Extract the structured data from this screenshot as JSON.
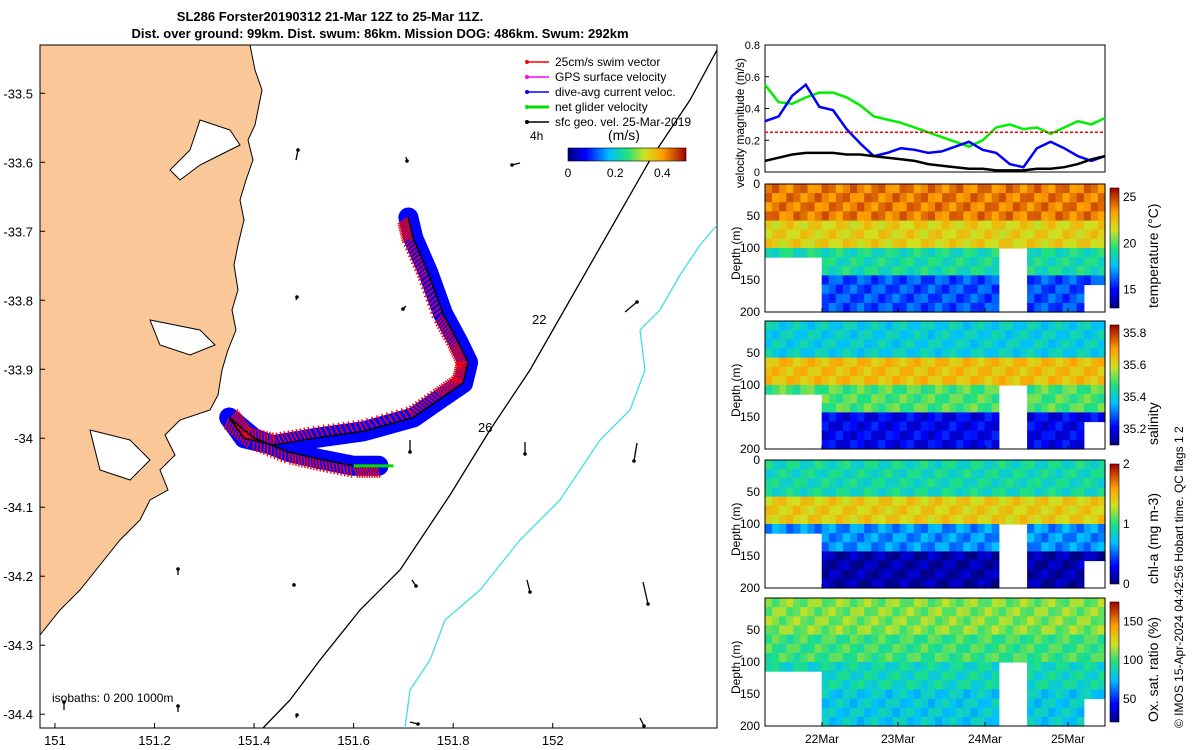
{
  "title_line1": "SL286 Forster20190312 21-Mar 12Z to 25-Mar 11Z.",
  "title_line2": "Dist. over ground: 99km. Dist. swum: 86km. Mission DOG: 486km. Swum: 292km",
  "credit": "© IMOS 15-Apr-2024 04:42:56 Hobart time. QC flags 1  2",
  "map": {
    "legend": [
      {
        "label": "25cm/s swim vector",
        "color": "#ff0000"
      },
      {
        "label": "GPS surface velocity",
        "color": "#ff00ff"
      },
      {
        "label": "dive-avg current veloc.",
        "color": "#0000ff"
      },
      {
        "label": "net glider velocity",
        "color": "#00dd00"
      },
      {
        "label": "sfc geo. vel. 25-Mar-2019",
        "color": "#000000"
      }
    ],
    "colorbar_unit": "(m/s)",
    "colorbar_ticks": [
      "0",
      "0.2",
      "0.4"
    ],
    "hour_label": "4h",
    "isobath_label": "isobaths: 0   200  1000m",
    "track_labels": [
      "22",
      "26"
    ],
    "land_color": "#fac898",
    "isobath_200_color": "#40e0e0"
  },
  "chart_data": [
    {
      "type": "line",
      "id": "map-axes",
      "xlim": [
        150.97,
        152.33
      ],
      "ylim": [
        -34.42,
        -33.43
      ],
      "xticks": [
        "151",
        "151.2",
        "151.4",
        "151.6",
        "151.8",
        "152"
      ],
      "yticks": [
        "-33.5",
        "-33.6",
        "-33.7",
        "-33.8",
        "-33.9",
        "-34",
        "-34.1",
        "-34.2",
        "-34.3",
        "-34.4"
      ],
      "glider_track": {
        "x": [
          151.71,
          151.72,
          151.75,
          151.78,
          151.81,
          151.83,
          151.82,
          151.78,
          151.72,
          151.62,
          151.52,
          151.44,
          151.38,
          151.35,
          151.4,
          151.47,
          151.53,
          151.6,
          151.65
        ],
        "y": [
          -33.68,
          -33.71,
          -33.76,
          -33.82,
          -33.86,
          -33.89,
          -33.92,
          -33.94,
          -33.97,
          -33.99,
          -34.0,
          -34.01,
          -34.0,
          -33.97,
          -34.0,
          -34.02,
          -34.03,
          -34.04,
          -34.04
        ]
      }
    },
    {
      "type": "line",
      "id": "velocity-magnitude",
      "ylabel": "velocity magnitude (m/s)",
      "ylim": [
        0,
        0.8
      ],
      "yticks": [
        "0",
        "0.2",
        "0.4",
        "0.6",
        "0.8"
      ],
      "series": [
        {
          "color": "#00ee00",
          "values": [
            0.55,
            0.44,
            0.43,
            0.47,
            0.5,
            0.5,
            0.47,
            0.42,
            0.35,
            0.33,
            0.31,
            0.28,
            0.25,
            0.22,
            0.19,
            0.16,
            0.2,
            0.28,
            0.3,
            0.27,
            0.28,
            0.24,
            0.28,
            0.32,
            0.3,
            0.34
          ]
        },
        {
          "color": "#0000ff",
          "values": [
            0.32,
            0.35,
            0.48,
            0.55,
            0.41,
            0.39,
            0.27,
            0.18,
            0.1,
            0.12,
            0.15,
            0.14,
            0.12,
            0.13,
            0.16,
            0.19,
            0.14,
            0.12,
            0.05,
            0.03,
            0.15,
            0.19,
            0.15,
            0.1,
            0.07,
            0.1
          ]
        },
        {
          "color": "#000000",
          "values": [
            0.07,
            0.09,
            0.11,
            0.12,
            0.12,
            0.12,
            0.11,
            0.11,
            0.1,
            0.09,
            0.08,
            0.07,
            0.05,
            0.04,
            0.03,
            0.02,
            0.02,
            0.01,
            0.01,
            0.01,
            0.02,
            0.02,
            0.03,
            0.05,
            0.08,
            0.1
          ]
        },
        {
          "color": "#ff0000",
          "values": [
            0.25,
            0.25,
            0.25,
            0.25,
            0.25,
            0.25,
            0.25,
            0.25,
            0.25,
            0.25,
            0.25,
            0.25,
            0.25,
            0.25,
            0.25,
            0.25,
            0.25,
            0.25,
            0.25,
            0.25,
            0.25,
            0.25,
            0.25,
            0.25,
            0.25,
            0.25
          ]
        }
      ]
    },
    {
      "type": "heatmap",
      "id": "temperature",
      "ylabel": "Depth (m)",
      "colorbar_label": "temperature (°C)",
      "colorbar_ticks": [
        "25",
        "20",
        "15"
      ],
      "yticks": [
        "0",
        "50",
        "100",
        "150",
        "200"
      ],
      "clim": [
        13,
        26
      ],
      "profile": [
        24,
        22,
        19,
        16
      ]
    },
    {
      "type": "heatmap",
      "id": "salinity",
      "ylabel": "Depth (m)",
      "colorbar_label": "salinity",
      "colorbar_ticks": [
        "35.8",
        "35.6",
        "35.4",
        "35.2"
      ],
      "yticks": [
        "50",
        "100",
        "150",
        "200"
      ],
      "clim": [
        35.1,
        35.85
      ],
      "profile": [
        35.4,
        35.65,
        35.5,
        35.2
      ]
    },
    {
      "type": "heatmap",
      "id": "chl-a",
      "ylabel": "Depth (m)",
      "colorbar_label": "chl-a (mg m-3)",
      "colorbar_ticks": [
        "2",
        "1",
        "0"
      ],
      "yticks": [
        "0",
        "50",
        "100",
        "150",
        "200"
      ],
      "clim": [
        0,
        2
      ],
      "profile": [
        0.9,
        1.4,
        0.6,
        0.1
      ]
    },
    {
      "type": "heatmap",
      "id": "oxygen",
      "ylabel": "Depth (m)",
      "colorbar_label": "Ox. sat. ratio (%)",
      "colorbar_ticks": [
        "150",
        "100",
        "50"
      ],
      "yticks": [
        "50",
        "100",
        "150",
        "200"
      ],
      "xticks": [
        "22Mar",
        "23Mar",
        "24Mar",
        "25Mar"
      ],
      "clim": [
        20,
        175
      ],
      "profile": [
        110,
        100,
        88,
        80
      ]
    }
  ]
}
